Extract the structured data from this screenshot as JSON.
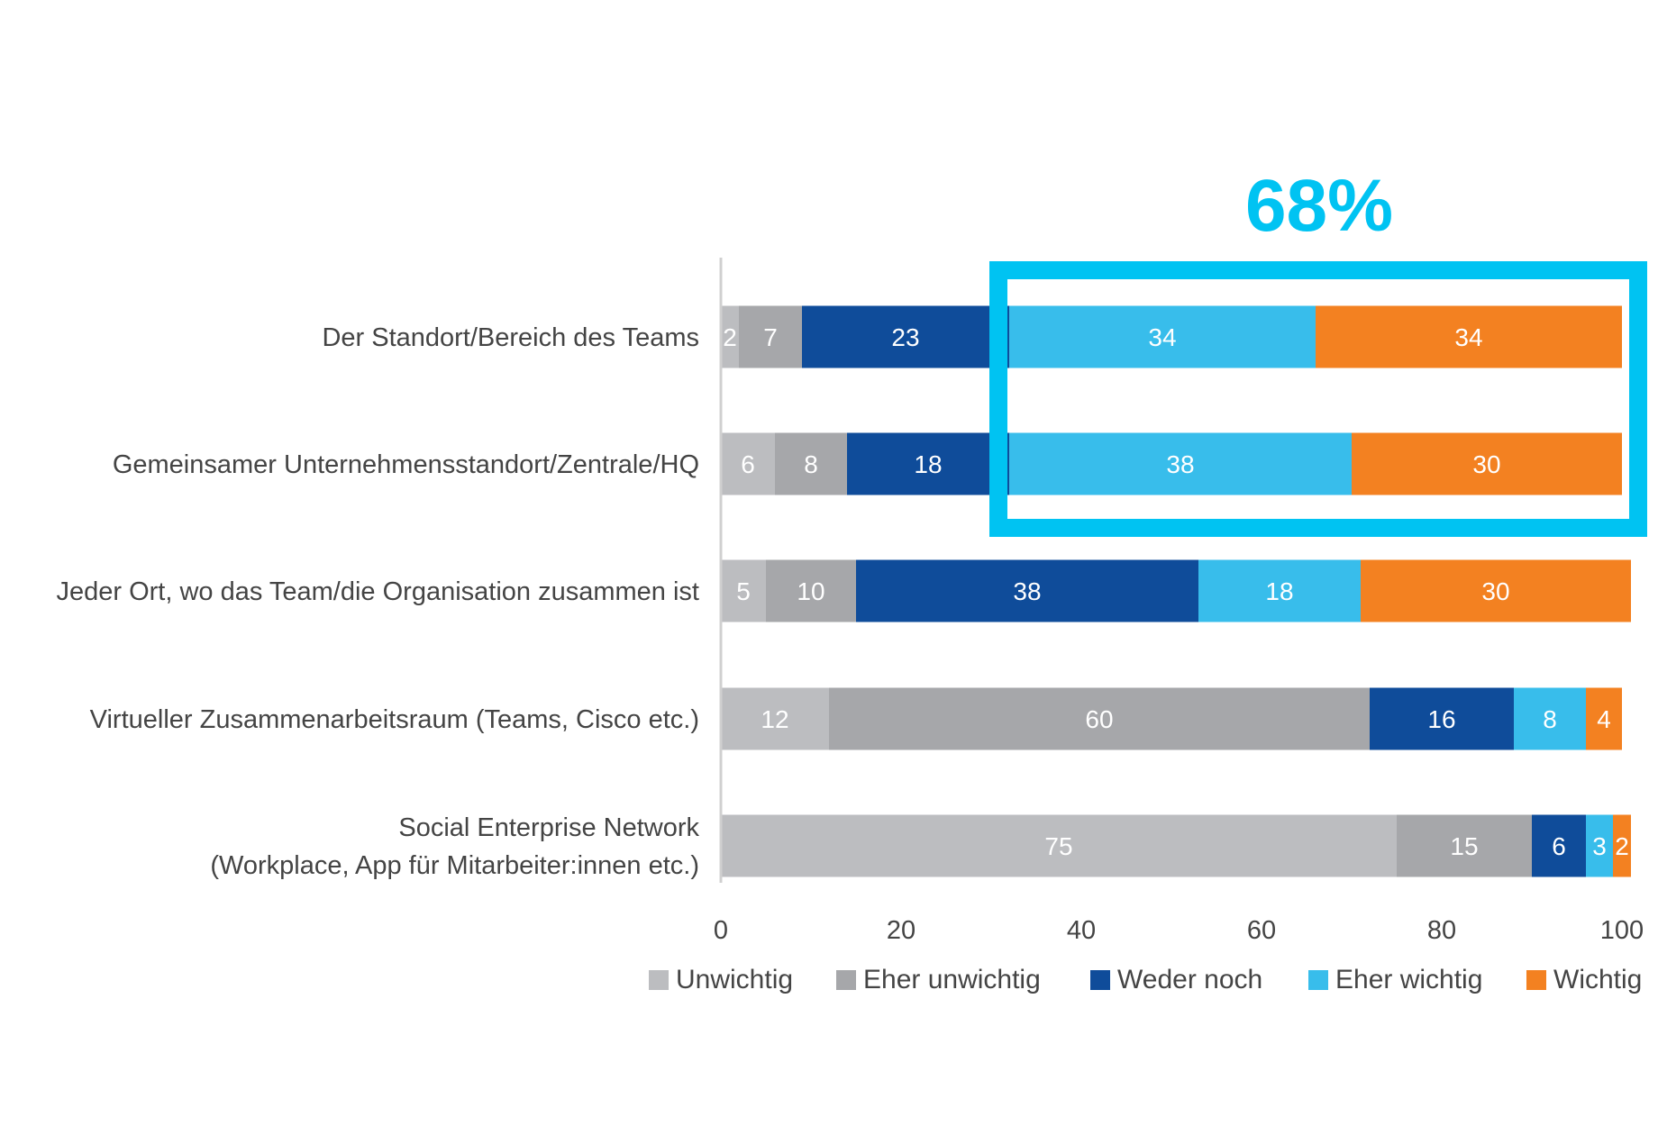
{
  "chart_data": {
    "type": "bar",
    "orientation": "horizontal",
    "stacked": true,
    "categories": [
      [
        "Der Standort/Bereich des Teams"
      ],
      [
        "Gemeinsamer Unternehmensstandort/Zentrale/HQ"
      ],
      [
        "Jeder Ort, wo das Team/die Organisation zusammen ist"
      ],
      [
        "Virtueller Zusammenarbeitsraum (Teams, Cisco etc.)"
      ],
      [
        "Social Enterprise Network",
        "(Workplace, App für Mitarbeiter:innen etc.)"
      ]
    ],
    "series": [
      {
        "name": "Unwichtig",
        "color": "#bcbdc0",
        "label_color": "#ffffff",
        "values": [
          2,
          6,
          5,
          12,
          75
        ]
      },
      {
        "name": "Eher unwichtig",
        "color": "#a6a7aa",
        "label_color": "#ffffff",
        "values": [
          7,
          8,
          10,
          60,
          15
        ]
      },
      {
        "name": "Weder noch",
        "color": "#0f4c9a",
        "label_color": "#ffffff",
        "values": [
          23,
          18,
          38,
          16,
          6
        ]
      },
      {
        "name": "Eher wichtig",
        "color": "#38bdeb",
        "label_color": "#ffffff",
        "values": [
          34,
          38,
          18,
          8,
          3
        ]
      },
      {
        "name": "Wichtig",
        "color": "#f38121",
        "label_color": "#ffffff",
        "values": [
          34,
          30,
          30,
          4,
          2
        ]
      }
    ],
    "xlim": [
      0,
      100
    ],
    "xticks": [
      "0",
      "20",
      "40",
      "60",
      "80",
      "100"
    ],
    "legend_position": "bottom",
    "grid": false,
    "callout": {
      "text": "68%",
      "color": "#00c3f2",
      "box_x_range": [
        30,
        102
      ],
      "box_categories": [
        0,
        1
      ]
    }
  }
}
